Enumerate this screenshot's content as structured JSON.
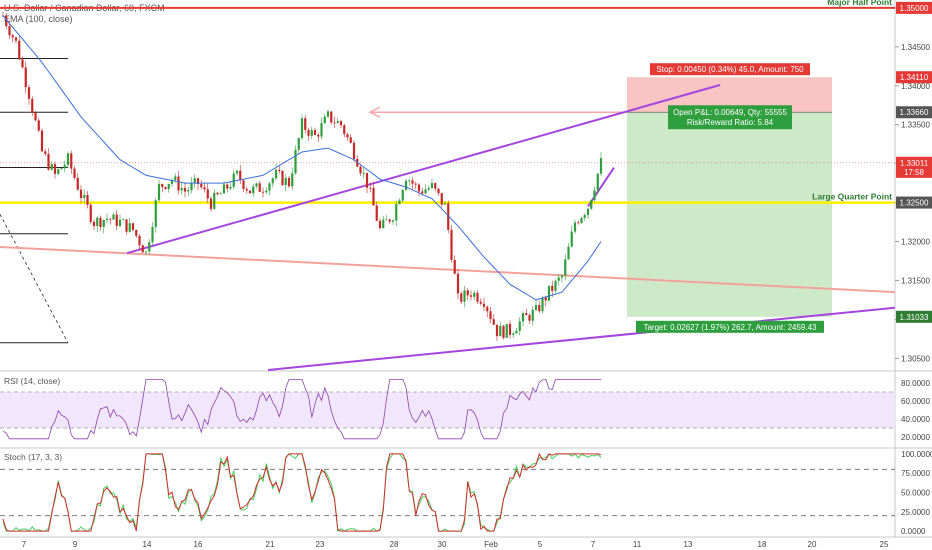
{
  "header": {
    "symbol": "U.S. Dollar / Canadian Dollar, 60, FXCM",
    "ema": "EMA (100, close)"
  },
  "price_axis": {
    "ticks": [
      "1.35000",
      "1.34500",
      "1.34000",
      "1.33500",
      "1.33000",
      "1.32500",
      "1.32000",
      "1.31500",
      "1.31000",
      "1.30500"
    ],
    "tick_values": [
      1.35,
      1.345,
      1.34,
      1.335,
      1.33,
      1.325,
      1.32,
      1.315,
      1.31,
      1.305
    ],
    "badges": [
      {
        "text": "1.35000",
        "value": 1.35,
        "color": "#e53935"
      },
      {
        "text": "1.34110",
        "value": 1.3411,
        "color": "#e53935"
      },
      {
        "text": "1.33660",
        "value": 1.3366,
        "color": "#555555"
      },
      {
        "text": "1.33011",
        "value": 1.33011,
        "color": "#e53935"
      },
      {
        "text": "17:58",
        "value": 1.32895,
        "color": "#e53935"
      },
      {
        "text": "1.32500",
        "value": 1.325,
        "color": "#555555"
      },
      {
        "text": "1.31033",
        "value": 1.31033,
        "color": "#2e7d32"
      }
    ]
  },
  "time_axis": {
    "labels": [
      "7",
      "9",
      "14",
      "16",
      "21",
      "23",
      "28",
      "30",
      "Feb",
      "5",
      "7",
      "11",
      "13",
      "18",
      "20",
      "25"
    ]
  },
  "annotations": {
    "major_half": "Major Half Point",
    "large_quarter": "Large Quarter Point",
    "stop": "Stop: 0.00450 (0.34%) 45.0, Amount: 750",
    "pnl_line1": "Open P&L: 0.00649, Qty: 55555",
    "pnl_line2": "Risk/Reward Ratio: 5.84",
    "target": "Target: 0.02627 (1.97%) 262.7, Amount: 2459.43"
  },
  "rsi": {
    "label": "RSI (14, close)",
    "ticks": [
      "80.0000",
      "60.0000",
      "40.0000",
      "20.0000"
    ],
    "tick_values": [
      80,
      60,
      40,
      20
    ],
    "upper": 70,
    "lower": 30
  },
  "stoch": {
    "label": "Stoch (17, 3, 3)",
    "ticks": [
      "100.0000",
      "75.0000",
      "50.0000",
      "25.0000",
      "0.0000"
    ],
    "tick_values": [
      100,
      75,
      50,
      25,
      0
    ],
    "upper": 80,
    "lower": 20
  },
  "chart_data": {
    "type": "candlestick",
    "title": "U.S. Dollar / Canadian Dollar, 60, FXCM",
    "ylim": [
      1.303,
      1.3505
    ],
    "price_path": [
      [
        0,
        1.349
      ],
      [
        1,
        1.3455
      ],
      [
        2,
        1.339
      ],
      [
        3,
        1.3315
      ],
      [
        4,
        1.3285
      ],
      [
        5,
        1.3305
      ],
      [
        6,
        1.326
      ],
      [
        7,
        1.3225
      ],
      [
        8,
        1.323
      ],
      [
        9,
        1.3225
      ],
      [
        10,
        1.3215
      ],
      [
        11,
        1.3185
      ],
      [
        12,
        1.327
      ],
      [
        13,
        1.328
      ],
      [
        14,
        1.3265
      ],
      [
        15,
        1.3275
      ],
      [
        16,
        1.325
      ],
      [
        17,
        1.3265
      ],
      [
        18,
        1.3285
      ],
      [
        19,
        1.3265
      ],
      [
        20,
        1.327
      ],
      [
        21,
        1.3285
      ],
      [
        22,
        1.3275
      ],
      [
        23,
        1.335
      ],
      [
        24,
        1.3335
      ],
      [
        25,
        1.336
      ],
      [
        26,
        1.335
      ],
      [
        27,
        1.3315
      ],
      [
        28,
        1.3275
      ],
      [
        29,
        1.3215
      ],
      [
        30,
        1.3235
      ],
      [
        31,
        1.3285
      ],
      [
        32,
        1.3265
      ],
      [
        33,
        1.327
      ],
      [
        34,
        1.3245
      ],
      [
        35,
        1.3125
      ],
      [
        36,
        1.3135
      ],
      [
        37,
        1.3125
      ],
      [
        38,
        1.3085
      ],
      [
        39,
        1.3085
      ],
      [
        40,
        1.31
      ],
      [
        41,
        1.311
      ],
      [
        42,
        1.3135
      ],
      [
        43,
        1.3155
      ],
      [
        44,
        1.3225
      ],
      [
        45,
        1.3245
      ],
      [
        46,
        1.3301
      ]
    ],
    "ema100_path": [
      [
        0,
        1.349
      ],
      [
        3,
        1.343
      ],
      [
        6,
        1.336
      ],
      [
        9,
        1.3305
      ],
      [
        11,
        1.3285
      ],
      [
        14,
        1.3275
      ],
      [
        17,
        1.3275
      ],
      [
        20,
        1.3285
      ],
      [
        23,
        1.3315
      ],
      [
        25,
        1.332
      ],
      [
        27,
        1.3305
      ],
      [
        29,
        1.328
      ],
      [
        31,
        1.327
      ],
      [
        33,
        1.3255
      ],
      [
        35,
        1.322
      ],
      [
        37,
        1.318
      ],
      [
        39,
        1.3145
      ],
      [
        41,
        1.3125
      ],
      [
        43,
        1.3135
      ],
      [
        45,
        1.3175
      ],
      [
        46,
        1.32
      ]
    ],
    "levels": [
      {
        "label": "Major Half Point",
        "value": 1.35,
        "color": "#e53935"
      },
      {
        "label": "Large Quarter Point",
        "value": 1.325,
        "color": "#ffee00"
      }
    ],
    "position": {
      "stop": 1.3411,
      "entry": 1.3366,
      "target": 1.31033,
      "current": 1.33011
    }
  }
}
